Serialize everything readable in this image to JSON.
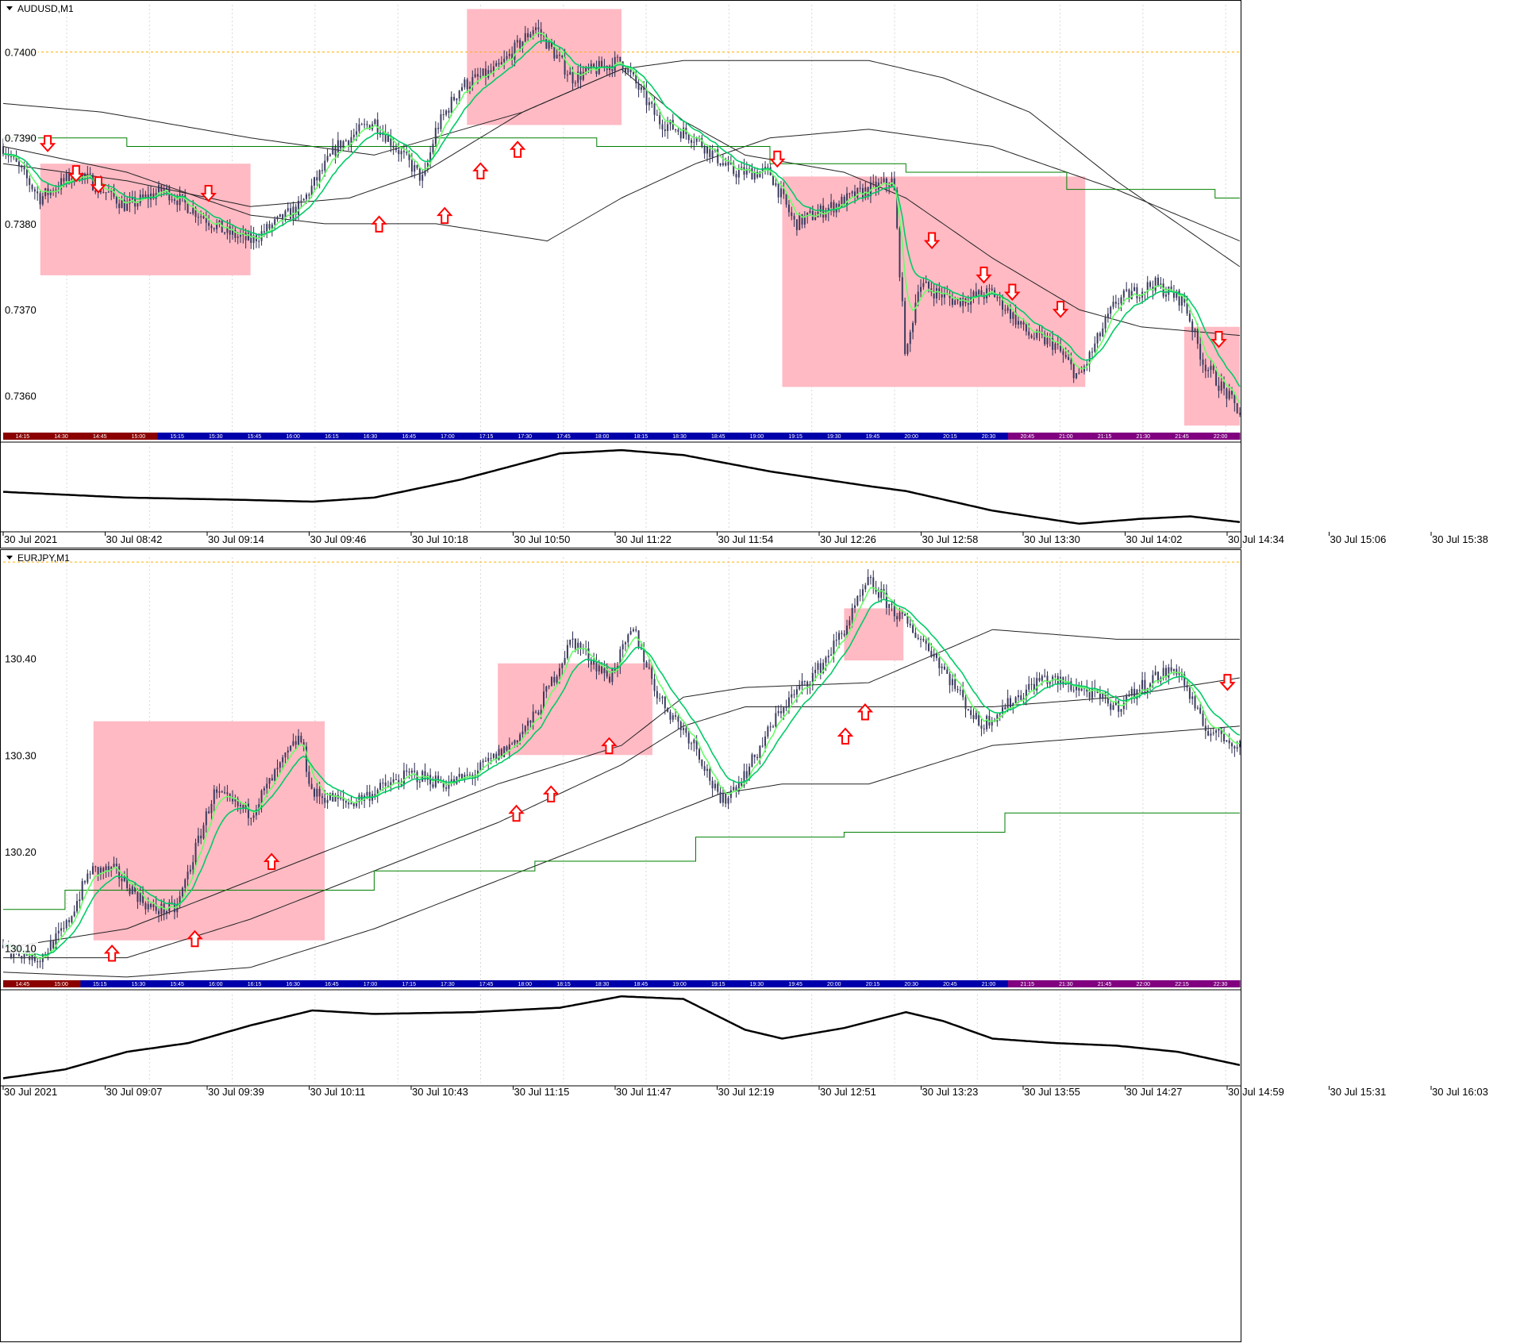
{
  "colors": {
    "zone": "#ffb6c1",
    "wick": "#2b2b4f",
    "candle_body": "#3a3a5e",
    "ema_fast": "#00cc66",
    "ema_slow": "#66ff66",
    "envelope": "#222222",
    "step_line": "#008000",
    "arrow": "#ff0000",
    "level_line": "#ffb000",
    "session_bar": "#0000aa",
    "session_red": "#8b0000",
    "session_purple": "#800080",
    "oscillator": "#000000",
    "grid": "#d8d8d8"
  },
  "chart_data": [
    {
      "type": "candlestick",
      "title": "AUDUSD,M1",
      "ylim": [
        0.73555,
        0.74055
      ],
      "y_ticks": [
        "0.7400",
        "0.7390",
        "0.7380",
        "0.7370",
        "0.7360"
      ],
      "level_line": 0.74,
      "x_labels": [
        "30 Jul 2021",
        "30 Jul 08:42",
        "30 Jul 09:14",
        "30 Jul 09:46",
        "30 Jul 10:18",
        "30 Jul 10:50",
        "30 Jul 11:22",
        "30 Jul 11:54",
        "30 Jul 12:26",
        "30 Jul 12:58",
        "30 Jul 13:30",
        "30 Jul 14:02",
        "30 Jul 14:34",
        "30 Jul 15:06",
        "30 Jul 15:38"
      ],
      "session_labels": [
        "14:15",
        "14:30",
        "14:45",
        "15:00",
        "15:15",
        "15:30",
        "15:45",
        "16:00",
        "16:15",
        "16:30",
        "16:45",
        "17:00",
        "17:15",
        "17:30",
        "17:45",
        "18:00",
        "18:15",
        "18:30",
        "18:45",
        "19:00",
        "19:15",
        "19:30",
        "19:45",
        "20:00",
        "20:15",
        "20:30",
        "20:45",
        "21:00",
        "21:15",
        "21:30",
        "21:45",
        "22:00"
      ],
      "price_path": [
        [
          0,
          0.7389
        ],
        [
          0.03,
          0.7383
        ],
        [
          0.06,
          0.7386
        ],
        [
          0.1,
          0.7382
        ],
        [
          0.13,
          0.7384
        ],
        [
          0.18,
          0.7379
        ],
        [
          0.2,
          0.7378
        ],
        [
          0.24,
          0.7382
        ],
        [
          0.27,
          0.7389
        ],
        [
          0.3,
          0.7392
        ],
        [
          0.34,
          0.7385
        ],
        [
          0.35,
          0.7391
        ],
        [
          0.37,
          0.7396
        ],
        [
          0.4,
          0.7398
        ],
        [
          0.43,
          0.7403
        ],
        [
          0.46,
          0.7397
        ],
        [
          0.5,
          0.7399
        ],
        [
          0.53,
          0.7392
        ],
        [
          0.56,
          0.739
        ],
        [
          0.59,
          0.7386
        ],
        [
          0.62,
          0.7386
        ],
        [
          0.64,
          0.738
        ],
        [
          0.67,
          0.7382
        ],
        [
          0.7,
          0.7384
        ],
        [
          0.72,
          0.7385
        ],
        [
          0.73,
          0.7364
        ],
        [
          0.74,
          0.7373
        ],
        [
          0.77,
          0.7371
        ],
        [
          0.8,
          0.7372
        ],
        [
          0.83,
          0.7367
        ],
        [
          0.85,
          0.7366
        ],
        [
          0.87,
          0.7362
        ],
        [
          0.9,
          0.7371
        ],
        [
          0.93,
          0.7373
        ],
        [
          0.955,
          0.7371
        ],
        [
          0.97,
          0.7364
        ],
        [
          1.0,
          0.7358
        ]
      ],
      "ema_offset": 0.0003,
      "envelope_upper": [
        [
          0,
          0.7394
        ],
        [
          0.08,
          0.7393
        ],
        [
          0.2,
          0.739
        ],
        [
          0.3,
          0.7388
        ],
        [
          0.42,
          0.7393
        ],
        [
          0.5,
          0.7398
        ],
        [
          0.55,
          0.7399
        ],
        [
          0.7,
          0.7399
        ],
        [
          0.76,
          0.7397
        ],
        [
          0.83,
          0.7393
        ],
        [
          0.9,
          0.7385
        ],
        [
          1.0,
          0.7375
        ]
      ],
      "envelope_mid": [
        [
          0,
          0.7387
        ],
        [
          0.1,
          0.7385
        ],
        [
          0.2,
          0.7382
        ],
        [
          0.28,
          0.7383
        ],
        [
          0.34,
          0.7386
        ],
        [
          0.42,
          0.7393
        ],
        [
          0.5,
          0.7398
        ],
        [
          0.55,
          0.7392
        ],
        [
          0.6,
          0.7388
        ],
        [
          0.68,
          0.7386
        ],
        [
          0.73,
          0.7383
        ],
        [
          0.8,
          0.7376
        ],
        [
          0.87,
          0.737
        ],
        [
          0.92,
          0.7368
        ],
        [
          1.0,
          0.7367
        ]
      ],
      "envelope_lower": [
        [
          0,
          0.7389
        ],
        [
          0.1,
          0.7386
        ],
        [
          0.2,
          0.7381
        ],
        [
          0.26,
          0.738
        ],
        [
          0.35,
          0.738
        ],
        [
          0.44,
          0.7378
        ],
        [
          0.5,
          0.7383
        ],
        [
          0.56,
          0.7387
        ],
        [
          0.62,
          0.739
        ],
        [
          0.7,
          0.7391
        ],
        [
          0.8,
          0.7389
        ],
        [
          0.9,
          0.7384
        ],
        [
          1.0,
          0.7378
        ]
      ],
      "step_line": [
        [
          0,
          0.739
        ],
        [
          0.1,
          0.739
        ],
        [
          0.1,
          0.7389
        ],
        [
          0.35,
          0.7389
        ],
        [
          0.35,
          0.739
        ],
        [
          0.48,
          0.739
        ],
        [
          0.48,
          0.7389
        ],
        [
          0.62,
          0.7389
        ],
        [
          0.62,
          0.7387
        ],
        [
          0.73,
          0.7387
        ],
        [
          0.73,
          0.7386
        ],
        [
          0.86,
          0.7386
        ],
        [
          0.86,
          0.7384
        ],
        [
          0.98,
          0.7384
        ],
        [
          0.98,
          0.7383
        ],
        [
          1.0,
          0.7383
        ]
      ],
      "zones": [
        [
          0.03,
          0.2,
          0.7387,
          0.7374
        ],
        [
          0.375,
          0.5,
          0.7405,
          0.73915
        ],
        [
          0.63,
          0.875,
          0.73855,
          0.7361
        ],
        [
          0.955,
          1.0,
          0.7368,
          0.73565
        ]
      ],
      "arrows": [
        [
          0.036,
          0.73893,
          "down"
        ],
        [
          0.059,
          0.73858,
          "down"
        ],
        [
          0.077,
          0.73845,
          "down"
        ],
        [
          0.166,
          0.73835,
          "down"
        ],
        [
          0.304,
          0.738,
          "up"
        ],
        [
          0.357,
          0.7381,
          "up"
        ],
        [
          0.386,
          0.73862,
          "up"
        ],
        [
          0.416,
          0.73887,
          "up"
        ],
        [
          0.626,
          0.73875,
          "down"
        ],
        [
          0.751,
          0.7378,
          "down"
        ],
        [
          0.793,
          0.7374,
          "down"
        ],
        [
          0.816,
          0.7372,
          "down"
        ],
        [
          0.855,
          0.737,
          "down"
        ],
        [
          0.983,
          0.73665,
          "down"
        ]
      ],
      "oscillator": [
        [
          0,
          0.45
        ],
        [
          0.1,
          0.38
        ],
        [
          0.2,
          0.35
        ],
        [
          0.25,
          0.33
        ],
        [
          0.3,
          0.38
        ],
        [
          0.37,
          0.6
        ],
        [
          0.45,
          0.92
        ],
        [
          0.5,
          0.96
        ],
        [
          0.55,
          0.9
        ],
        [
          0.62,
          0.7
        ],
        [
          0.7,
          0.52
        ],
        [
          0.73,
          0.46
        ],
        [
          0.8,
          0.22
        ],
        [
          0.87,
          0.06
        ],
        [
          0.92,
          0.12
        ],
        [
          0.96,
          0.15
        ],
        [
          1.0,
          0.08
        ]
      ],
      "osc_ylim": [
        0,
        1
      ],
      "candles": 470,
      "pane_top": 0,
      "pane_height": 692
    },
    {
      "type": "candlestick",
      "title": "EURJPY,M1",
      "ylim": [
        130.065,
        130.505
      ],
      "y_ticks": [
        "130.40",
        "130.30",
        "130.20",
        "130.10"
      ],
      "level_line": 130.5,
      "x_labels": [
        "30 Jul 2021",
        "30 Jul 09:07",
        "30 Jul 09:39",
        "30 Jul 10:11",
        "30 Jul 10:43",
        "30 Jul 11:15",
        "30 Jul 11:47",
        "30 Jul 12:19",
        "30 Jul 12:51",
        "30 Jul 13:23",
        "30 Jul 13:55",
        "30 Jul 14:27",
        "30 Jul 14:59",
        "30 Jul 15:31",
        "30 Jul 16:03"
      ],
      "session_labels": [
        "14:45",
        "15:00",
        "15:15",
        "15:30",
        "15:45",
        "16:00",
        "16:15",
        "16:30",
        "16:45",
        "17:00",
        "17:15",
        "17:30",
        "17:45",
        "18:00",
        "18:15",
        "18:30",
        "18:45",
        "19:00",
        "19:15",
        "19:30",
        "19:45",
        "20:00",
        "20:15",
        "20:30",
        "20:45",
        "21:00",
        "21:15",
        "21:30",
        "21:45",
        "22:00",
        "22:15",
        "22:30"
      ],
      "price_path": [
        [
          0,
          130.1
        ],
        [
          0.03,
          130.09
        ],
        [
          0.05,
          130.12
        ],
        [
          0.07,
          130.18
        ],
        [
          0.09,
          130.18
        ],
        [
          0.12,
          130.14
        ],
        [
          0.14,
          130.14
        ],
        [
          0.17,
          130.26
        ],
        [
          0.2,
          130.24
        ],
        [
          0.24,
          130.32
        ],
        [
          0.25,
          130.26
        ],
        [
          0.28,
          130.25
        ],
        [
          0.33,
          130.28
        ],
        [
          0.36,
          130.27
        ],
        [
          0.38,
          130.28
        ],
        [
          0.41,
          130.31
        ],
        [
          0.43,
          130.34
        ],
        [
          0.46,
          130.42
        ],
        [
          0.49,
          130.38
        ],
        [
          0.51,
          130.43
        ],
        [
          0.53,
          130.36
        ],
        [
          0.56,
          130.31
        ],
        [
          0.58,
          130.25
        ],
        [
          0.6,
          130.28
        ],
        [
          0.63,
          130.35
        ],
        [
          0.66,
          130.39
        ],
        [
          0.68,
          130.43
        ],
        [
          0.7,
          130.48
        ],
        [
          0.72,
          130.45
        ],
        [
          0.75,
          130.41
        ],
        [
          0.77,
          130.37
        ],
        [
          0.79,
          130.33
        ],
        [
          0.82,
          130.36
        ],
        [
          0.84,
          130.38
        ],
        [
          0.87,
          130.37
        ],
        [
          0.9,
          130.35
        ],
        [
          0.93,
          130.38
        ],
        [
          0.95,
          130.39
        ],
        [
          0.97,
          130.33
        ],
        [
          1.0,
          130.31
        ]
      ],
      "ema_offset": 0.01,
      "envelope_upper": [
        [
          0,
          130.1
        ],
        [
          0.1,
          130.12
        ],
        [
          0.2,
          130.17
        ],
        [
          0.3,
          130.22
        ],
        [
          0.4,
          130.27
        ],
        [
          0.5,
          130.31
        ],
        [
          0.55,
          130.36
        ],
        [
          0.6,
          130.37
        ],
        [
          0.7,
          130.375
        ],
        [
          0.8,
          130.43
        ],
        [
          0.9,
          130.42
        ],
        [
          1.0,
          130.42
        ]
      ],
      "envelope_mid": [
        [
          0,
          130.09
        ],
        [
          0.1,
          130.09
        ],
        [
          0.2,
          130.13
        ],
        [
          0.3,
          130.18
        ],
        [
          0.4,
          130.23
        ],
        [
          0.5,
          130.29
        ],
        [
          0.55,
          130.33
        ],
        [
          0.6,
          130.35
        ],
        [
          0.7,
          130.35
        ],
        [
          0.8,
          130.35
        ],
        [
          0.9,
          130.36
        ],
        [
          1.0,
          130.38
        ]
      ],
      "envelope_lower": [
        [
          0,
          130.075
        ],
        [
          0.1,
          130.07
        ],
        [
          0.2,
          130.08
        ],
        [
          0.3,
          130.12
        ],
        [
          0.4,
          130.17
        ],
        [
          0.5,
          130.22
        ],
        [
          0.58,
          130.26
        ],
        [
          0.63,
          130.27
        ],
        [
          0.7,
          130.27
        ],
        [
          0.8,
          130.31
        ],
        [
          0.9,
          130.32
        ],
        [
          1.0,
          130.33
        ]
      ],
      "step_line": [
        [
          0,
          130.14
        ],
        [
          0.05,
          130.14
        ],
        [
          0.05,
          130.16
        ],
        [
          0.3,
          130.16
        ],
        [
          0.3,
          130.18
        ],
        [
          0.43,
          130.18
        ],
        [
          0.43,
          130.19
        ],
        [
          0.56,
          130.19
        ],
        [
          0.56,
          130.215
        ],
        [
          0.68,
          130.215
        ],
        [
          0.68,
          130.22
        ],
        [
          0.81,
          130.22
        ],
        [
          0.81,
          130.24
        ],
        [
          1.0,
          130.24
        ]
      ],
      "zones": [
        [
          0.073,
          0.26,
          130.335,
          130.108
        ],
        [
          0.4,
          0.525,
          130.395,
          130.3
        ],
        [
          0.68,
          0.728,
          130.452,
          130.398
        ],
        [
          0.85,
          0.85,
          130.36,
          130.36
        ]
      ],
      "arrows": [
        [
          0.088,
          130.095,
          "up"
        ],
        [
          0.155,
          130.11,
          "up"
        ],
        [
          0.217,
          130.19,
          "up"
        ],
        [
          0.415,
          130.24,
          "up"
        ],
        [
          0.443,
          130.26,
          "up"
        ],
        [
          0.49,
          130.31,
          "up"
        ],
        [
          0.681,
          130.32,
          "up"
        ],
        [
          0.697,
          130.345,
          "up"
        ],
        [
          0.99,
          130.375,
          "down"
        ]
      ],
      "oscillator": [
        [
          0,
          0.05
        ],
        [
          0.05,
          0.15
        ],
        [
          0.1,
          0.35
        ],
        [
          0.15,
          0.45
        ],
        [
          0.2,
          0.65
        ],
        [
          0.25,
          0.82
        ],
        [
          0.3,
          0.78
        ],
        [
          0.38,
          0.8
        ],
        [
          0.45,
          0.85
        ],
        [
          0.5,
          0.98
        ],
        [
          0.55,
          0.95
        ],
        [
          0.6,
          0.6
        ],
        [
          0.63,
          0.5
        ],
        [
          0.68,
          0.62
        ],
        [
          0.73,
          0.8
        ],
        [
          0.76,
          0.7
        ],
        [
          0.8,
          0.5
        ],
        [
          0.85,
          0.45
        ],
        [
          0.9,
          0.42
        ],
        [
          0.95,
          0.35
        ],
        [
          1.0,
          0.2
        ]
      ],
      "osc_ylim": [
        0,
        1
      ],
      "candles": 470,
      "pane_top": 692,
      "pane_height": 1000
    }
  ]
}
